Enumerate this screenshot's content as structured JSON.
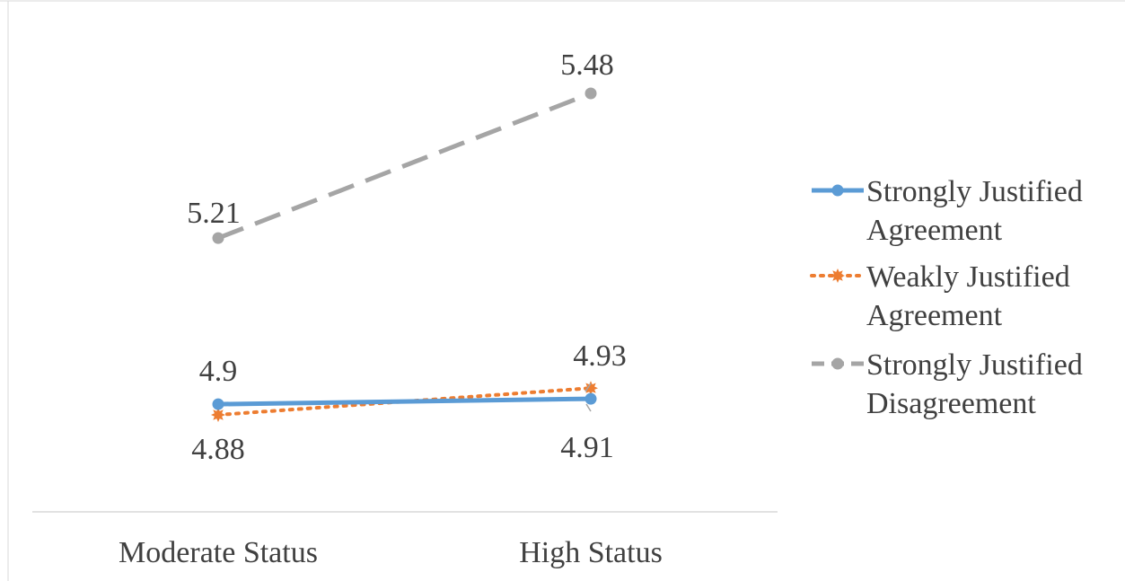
{
  "chart_data": {
    "type": "line",
    "title": "",
    "xlabel": "",
    "ylabel": "",
    "categories": [
      "Moderate Status",
      "High Status"
    ],
    "ylim": [
      4.7,
      5.55
    ],
    "grid": false,
    "legend_position": "right",
    "series": [
      {
        "name": "Strongly Justified Agreement",
        "values": [
          4.9,
          4.91
        ],
        "color": "#5b9bd5",
        "line_style": "solid",
        "marker": "circle",
        "value_labels": [
          "4.9",
          "4.91"
        ]
      },
      {
        "name": "Weakly Justified Agreement",
        "values": [
          4.88,
          4.93
        ],
        "color": "#ed7d31",
        "line_style": "dotted",
        "marker": "star",
        "value_labels": [
          "4.88",
          "4.93"
        ]
      },
      {
        "name": "Strongly Justified Disagreement",
        "values": [
          5.21,
          5.48
        ],
        "color": "#a5a5a5",
        "line_style": "dashed",
        "marker": "circle",
        "value_labels": [
          "5.21",
          "5.48"
        ]
      }
    ],
    "legend_lines": [
      [
        "Strongly Justified",
        "Agreement"
      ],
      [
        "Weakly Justified",
        "Agreement"
      ],
      [
        "Strongly Justified",
        "Disagreement"
      ]
    ]
  }
}
